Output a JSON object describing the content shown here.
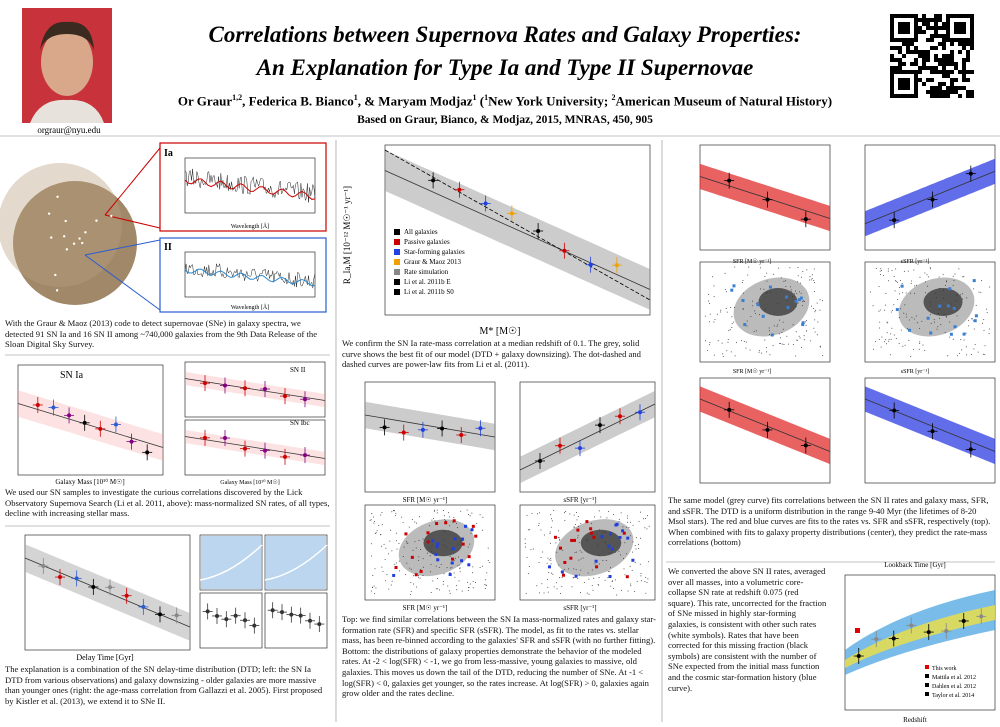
{
  "header": {
    "title_line1": "Correlations between Supernova Rates and Galaxy Properties:",
    "title_line2": "An Explanation for Type Ia and Type II Supernovae",
    "author_line": [
      "Or Graur",
      "1,2",
      ", Federica B. Bianco",
      "1",
      ", & Maryam Modjaz",
      "1",
      " (",
      "1",
      "New York University; ",
      "2",
      "American Museum of Natural History)"
    ],
    "reference": "Based on Graur, Bianco, & Modjaz, 2015, MNRAS, 450, 905",
    "email": "orgraur@nyu.edu"
  },
  "column1": {
    "spectra": {
      "label_ia": "Ia",
      "label_ii": "II",
      "xlabel": "Wavelength [Å]"
    },
    "caption_spectra": "With the Graur & Maoz (2013) code to detect supernovae (SNe) in galaxy spectra, we detected 91 SN Ia and 16 SN II among ~740,000 galaxies from the 9th Data Release of the Sloan Digital Sky Survey.",
    "rates": {
      "label_ia": "SN Ia",
      "label_ii": "SN II",
      "label_ibc": "SN Ibc",
      "xlabel": "Galaxy Mass [10¹⁰ M☉]"
    },
    "caption_rates": "We used our SN samples to investigate the curious correlations discovered by the Lick Observatory Supernova Search (Li et al. 2011, above): mass-normalized SN rates, of all types, decline with increasing stellar mass.",
    "dtd": {
      "xlabel": "Delay Time [Gyr]"
    },
    "caption_dtd": "The explanation is a combination of the SN delay-time distribution (DTD; left: the SN Ia DTD from various observations) and galaxy downsizing - older galaxies are more massive than younger ones (right: the age-mass correlation from Gallazzi et al. 2005). First proposed by Kistler et al. (2013), we extend it to SNe II."
  },
  "column2": {
    "mass_plot": {
      "xlabel": "M* [M☉]",
      "ylabel": "R_Ia,M [10⁻¹² M☉⁻¹ yr⁻¹]",
      "legend": [
        "All galaxies",
        "Passive galaxies",
        "Star-forming galaxies",
        "Graur & Maoz 2013",
        "Rate simulation",
        "Li et al. 2011b E",
        "Li et al. 2011b S0"
      ]
    },
    "caption_mass": "We confirm the SN Ia rate-mass correlation at a median redshift of 0.1. The grey, solid curve shows the best fit of our model (DTD + galaxy downsizing). The dot-dashed and dashed curves are power-law fits from Li et al. (2011).",
    "sfr_xlabel": "SFR [M☉ yr⁻¹]",
    "ssfr_xlabel": "sSFR [yr⁻¹]",
    "caption_sfr": "Top: we find similar correlations between the SN Ia mass-normalized rates and galaxy star-formation rate (SFR) and specific SFR (sSFR). The model, as fit to the rates vs. stellar mass, has been re-binned according to the galaxies' SFR and sSFR (with no further fitting). Bottom: the distributions of galaxy properties demonstrate the behavior of the modeled rates. At -2 < log(SFR) < -1, we go from less-massive, young galaxies to massive, old galaxies. This moves us down the tail of the DTD, reducing the number of SNe. At -1 < log(SFR) < 0, galaxies get younger, so the rates increase. At log(SFR) > 0, galaxies again grow older and the rates decline."
  },
  "column3": {
    "sfr_xlabel": "SFR [M☉ yr⁻¹]",
    "ssfr_xlabel": "sSFR [yr⁻¹]",
    "caption_model": "The same model (grey curve) fits correlations between the SN II rates and galaxy mass, SFR, and sSFR. The DTD is a uniform distribution in the range 9-40 Myr (the lifetimes of 8-20 Msol stars). The red and blue curves are fits to the rates vs. SFR and sSFR, respectively (top). When combined with fits to galaxy property distributions (center), they predict the rate-mass correlations (bottom)",
    "caption_cc": "We converted the above SN II rates, averaged over all masses, into a volumetric core-collapse SN rate at redshift 0.075 (red square). This rate, uncorrected for the fraction of SNe missed in highly star-forming galaxies, is consistent with other such rates (white symbols). Rates that have been corrected for this missing fraction (black symbols) are consistent with the number of SNe expected from the initial mass function and the cosmic star-formation history (blue curve).",
    "cc_plot": {
      "top_label": "Lookback Time [Gyr]",
      "xlabel": "Redshift",
      "legend": [
        "This work",
        "Mattila et al. 2012",
        "Dahlen et al. 2012",
        "Taylor et al. 2014"
      ]
    }
  }
}
